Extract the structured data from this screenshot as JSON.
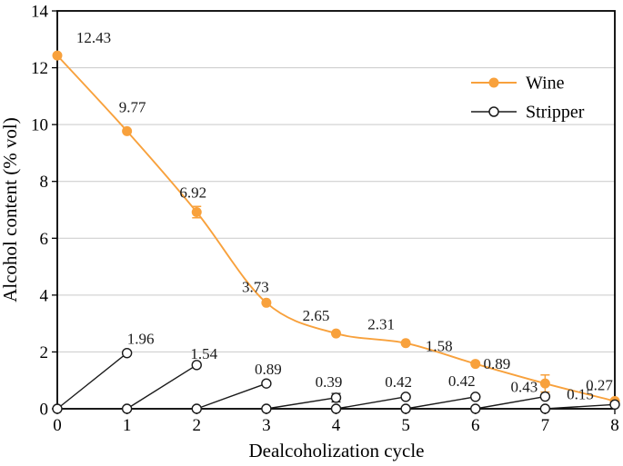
{
  "chart_data": {
    "type": "line",
    "title": "",
    "xlabel": "Dealcoholization cycle",
    "ylabel": "Alcohol content (% vol)",
    "xlim": [
      0,
      8
    ],
    "ylim": [
      0,
      14
    ],
    "xticks": [
      "0",
      "1",
      "2",
      "3",
      "4",
      "5",
      "6",
      "7",
      "8"
    ],
    "yticks": [
      "0",
      "2",
      "4",
      "6",
      "8",
      "10",
      "12",
      "14"
    ],
    "grid": "horizontal-light",
    "legend_position": "upper-right",
    "colors": {
      "wine": "#F8A13C",
      "stripper": "#1a1a1a",
      "grid": "#c9c9c9",
      "axis": "#000000",
      "label_text": "#1a1a1a"
    },
    "series": [
      {
        "name": "Wine",
        "marker": "filled-circle",
        "x": [
          0,
          1,
          2,
          3,
          4,
          5,
          6,
          7,
          8
        ],
        "y": [
          12.43,
          9.77,
          6.92,
          3.73,
          2.65,
          2.31,
          1.58,
          0.89,
          0.27
        ],
        "labels": [
          "12.43",
          "9.77",
          "6.92",
          "3.73",
          "2.65",
          "2.31",
          "1.58",
          "0.89",
          "0.27"
        ],
        "error_bars": [
          {
            "x": 2,
            "y": 6.92,
            "err": 0.2
          },
          {
            "x": 7,
            "y": 0.89,
            "err": 0.3
          }
        ]
      },
      {
        "name": "Stripper",
        "marker": "open-circle",
        "segments": [
          {
            "from": [
              0,
              0
            ],
            "to": [
              1,
              1.96
            ]
          },
          {
            "from": [
              1,
              0
            ],
            "to": [
              2,
              1.54
            ]
          },
          {
            "from": [
              2,
              0
            ],
            "to": [
              3,
              0.89
            ]
          },
          {
            "from": [
              3,
              0
            ],
            "to": [
              4,
              0.39
            ]
          },
          {
            "from": [
              4,
              0
            ],
            "to": [
              5,
              0.42
            ]
          },
          {
            "from": [
              5,
              0
            ],
            "to": [
              6,
              0.42
            ]
          },
          {
            "from": [
              6,
              0
            ],
            "to": [
              7,
              0.43
            ]
          },
          {
            "from": [
              7,
              0
            ],
            "to": [
              8,
              0.15
            ]
          }
        ],
        "peak_labels": [
          "1.96",
          "1.54",
          "0.89",
          "0.39",
          "0.42",
          "0.42",
          "0.43",
          "0.15"
        ],
        "error_bars": [
          {
            "x": 4,
            "y": 0.39,
            "err": 0.15
          }
        ]
      }
    ],
    "label_offsets": {
      "wine": [
        [
          40,
          -19
        ],
        [
          6,
          -26
        ],
        [
          -4,
          -21
        ],
        [
          -12,
          -17
        ],
        [
          -22,
          -19
        ],
        [
          -27,
          -20
        ],
        [
          -40,
          -19
        ],
        [
          -53,
          -21
        ],
        [
          -17,
          -17
        ]
      ],
      "stripper": [
        [
          15,
          -15
        ],
        [
          8,
          -12
        ],
        [
          2,
          -15
        ],
        [
          -8,
          -17
        ],
        [
          -8,
          -16
        ],
        [
          -15,
          -17
        ],
        [
          -23,
          -10
        ],
        [
          -38,
          -11
        ]
      ]
    }
  }
}
